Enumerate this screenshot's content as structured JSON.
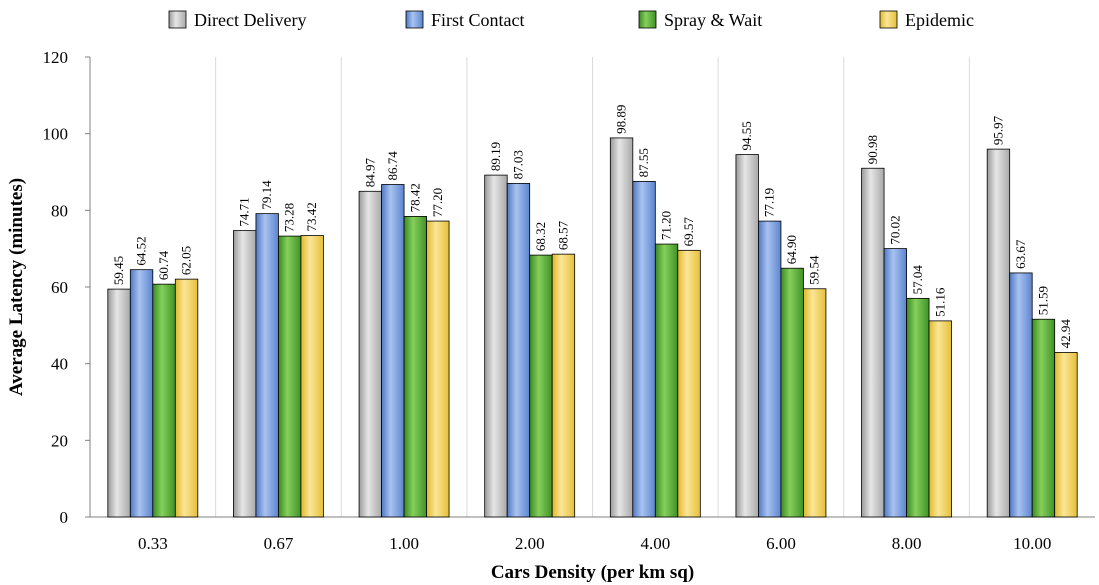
{
  "chart_data": {
    "type": "bar",
    "title": "",
    "xlabel": "Cars Density (per km sq)",
    "ylabel": "Average Latency (minutes)",
    "ylim": [
      0,
      120
    ],
    "yticks": [
      "0",
      "20",
      "40",
      "60",
      "80",
      "100",
      "120"
    ],
    "grid": "vertical separators between categories",
    "legend_position": "top",
    "categories": [
      "0.33",
      "0.67",
      "1.00",
      "2.00",
      "4.00",
      "6.00",
      "8.00",
      "10.00"
    ],
    "series": [
      {
        "name": "Direct Delivery",
        "color": "#bfbfbf",
        "values": [
          59.45,
          74.71,
          84.97,
          89.19,
          98.89,
          94.55,
          90.98,
          95.97
        ],
        "labels": [
          "59.45",
          "74.71",
          "84.97",
          "89.19",
          "98.89",
          "94.55",
          "90.98",
          "95.97"
        ]
      },
      {
        "name": "First Contact",
        "color": "#7fa3e0",
        "values": [
          64.52,
          79.14,
          86.74,
          87.03,
          87.55,
          77.19,
          70.02,
          63.67
        ],
        "labels": [
          "64.52",
          "79.14",
          "86.74",
          "87.03",
          "87.55",
          "77.19",
          "70.02",
          "63.67"
        ]
      },
      {
        "name": "Spray & Wait",
        "color": "#5fae3c",
        "values": [
          60.74,
          73.28,
          78.42,
          68.32,
          71.2,
          64.9,
          57.04,
          51.59
        ],
        "labels": [
          "60.74",
          "73.28",
          "78.42",
          "68.32",
          "71.20",
          "64.90",
          "57.04",
          "51.59"
        ]
      },
      {
        "name": "Epidemic",
        "color": "#f5d45a",
        "values": [
          62.05,
          73.42,
          77.2,
          68.57,
          69.57,
          59.54,
          51.16,
          42.94
        ],
        "labels": [
          "62.05",
          "73.42",
          "77.20",
          "68.57",
          "69.57",
          "59.54",
          "51.16",
          "42.94"
        ]
      }
    ]
  }
}
